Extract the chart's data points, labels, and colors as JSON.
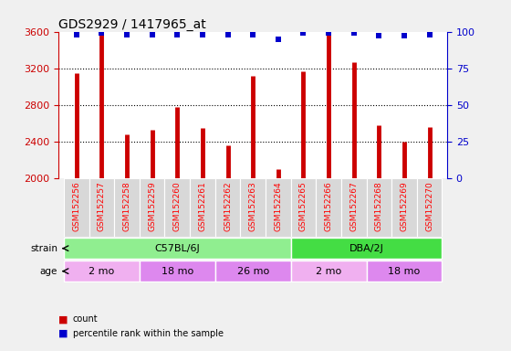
{
  "title": "GDS2929 / 1417965_at",
  "samples": [
    "GSM152256",
    "GSM152257",
    "GSM152258",
    "GSM152259",
    "GSM152260",
    "GSM152261",
    "GSM152262",
    "GSM152263",
    "GSM152264",
    "GSM152265",
    "GSM152266",
    "GSM152267",
    "GSM152268",
    "GSM152269",
    "GSM152270"
  ],
  "counts": [
    3150,
    3580,
    2480,
    2530,
    2780,
    2550,
    2360,
    3120,
    2100,
    3170,
    3580,
    3270,
    2580,
    2400,
    2560
  ],
  "percentile_ranks": [
    98,
    99,
    98,
    98,
    98,
    98,
    98,
    98,
    95,
    99,
    99,
    99,
    97,
    97,
    98
  ],
  "bar_color": "#cc0000",
  "dot_color": "#0000cc",
  "ylim_left": [
    2000,
    3600
  ],
  "ylim_right": [
    0,
    100
  ],
  "yticks_left": [
    2000,
    2400,
    2800,
    3200,
    3600
  ],
  "yticks_right": [
    0,
    25,
    50,
    75,
    100
  ],
  "strain_groups": [
    {
      "label": "C57BL/6J",
      "start": 0,
      "end": 9,
      "color": "#90ee90"
    },
    {
      "label": "DBA/2J",
      "start": 9,
      "end": 15,
      "color": "#44dd44"
    }
  ],
  "age_groups": [
    {
      "label": "2 mo",
      "start": 0,
      "end": 3,
      "color": "#f0b0f0"
    },
    {
      "label": "18 mo",
      "start": 3,
      "end": 6,
      "color": "#dd88ee"
    },
    {
      "label": "26 mo",
      "start": 6,
      "end": 9,
      "color": "#dd88ee"
    },
    {
      "label": "2 mo",
      "start": 9,
      "end": 12,
      "color": "#f0b0f0"
    },
    {
      "label": "18 mo",
      "start": 12,
      "end": 15,
      "color": "#dd88ee"
    }
  ],
  "background_color": "#f0f0f0",
  "plot_bg_color": "#ffffff",
  "xtick_bg_color": "#d8d8d8",
  "left_tick_color": "#cc0000",
  "right_tick_color": "#0000cc"
}
